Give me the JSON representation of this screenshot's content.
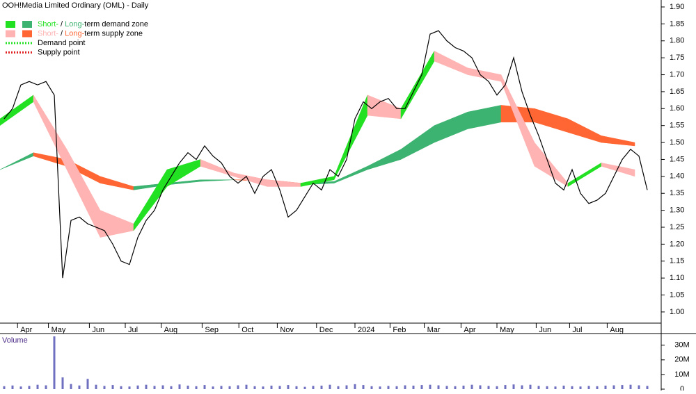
{
  "chart_data": {
    "type": "stock",
    "title": "OOH!Media Limited Ordinary (OML) - Daily",
    "legend": [
      {
        "parts": [
          "Short-",
          " / ",
          "Long-",
          "term demand zone"
        ],
        "colors": [
          "#22e022",
          "#3cb371"
        ],
        "kind": "zone"
      },
      {
        "parts": [
          "Short-",
          " / ",
          "Long-",
          "term supply zone"
        ],
        "colors": [
          "#ffb3b3",
          "#ff6633"
        ],
        "kind": "zone"
      },
      {
        "parts": [
          "Demand point"
        ],
        "colors": [
          "#22e022"
        ],
        "kind": "point"
      },
      {
        "parts": [
          "Supply point"
        ],
        "colors": [
          "#e02020"
        ],
        "kind": "point"
      }
    ],
    "xlim": [
      0,
      79
    ],
    "xticks": [
      {
        "value": 2.1,
        "label": "Apr"
      },
      {
        "value": 5.8,
        "label": "May"
      },
      {
        "value": 10.7,
        "label": "Jun"
      },
      {
        "value": 15,
        "label": "Jul"
      },
      {
        "value": 19.3,
        "label": "Aug"
      },
      {
        "value": 24.2,
        "label": "Sep"
      },
      {
        "value": 28.6,
        "label": "Oct"
      },
      {
        "value": 33.2,
        "label": "Nov"
      },
      {
        "value": 37.9,
        "label": "Dec"
      },
      {
        "value": 42.5,
        "label": "2024"
      },
      {
        "value": 46.7,
        "label": "Feb"
      },
      {
        "value": 50.8,
        "label": "Mar"
      },
      {
        "value": 55.2,
        "label": "Apr"
      },
      {
        "value": 59.5,
        "label": "May"
      },
      {
        "value": 64.2,
        "label": "Jun"
      },
      {
        "value": 68.2,
        "label": "Jul"
      },
      {
        "value": 72.7,
        "label": "Aug"
      }
    ],
    "ylim": [
      0.967,
      1.9205
    ],
    "yticks": [
      {
        "value": 1.0,
        "label": "1.00"
      },
      {
        "value": 1.05,
        "label": "1.05"
      },
      {
        "value": 1.1,
        "label": "1.10"
      },
      {
        "value": 1.15,
        "label": "1.15"
      },
      {
        "value": 1.2,
        "label": "1.20"
      },
      {
        "value": 1.25,
        "label": "1.25"
      },
      {
        "value": 1.3,
        "label": "1.30"
      },
      {
        "value": 1.35,
        "label": "1.35"
      },
      {
        "value": 1.4,
        "label": "1.40"
      },
      {
        "value": 1.45,
        "label": "1.45"
      },
      {
        "value": 1.5,
        "label": "1.50"
      },
      {
        "value": 1.55,
        "label": "1.55"
      },
      {
        "value": 1.6,
        "label": "1.60"
      },
      {
        "value": 1.65,
        "label": "1.65"
      },
      {
        "value": 1.7,
        "label": "1.70"
      },
      {
        "value": 1.75,
        "label": "1.75"
      },
      {
        "value": 1.8,
        "label": "1.80"
      },
      {
        "value": 1.85,
        "label": "1.85"
      },
      {
        "value": 1.9,
        "label": "1.90"
      }
    ],
    "price": {
      "color": "#000000",
      "values": [
        1.57,
        1.6,
        1.67,
        1.68,
        1.67,
        1.68,
        1.64,
        1.1,
        1.27,
        1.28,
        1.26,
        1.25,
        1.24,
        1.2,
        1.15,
        1.14,
        1.22,
        1.27,
        1.3,
        1.36,
        1.4,
        1.44,
        1.47,
        1.45,
        1.49,
        1.46,
        1.44,
        1.4,
        1.38,
        1.4,
        1.35,
        1.4,
        1.42,
        1.36,
        1.28,
        1.3,
        1.34,
        1.38,
        1.36,
        1.42,
        1.4,
        1.45,
        1.57,
        1.62,
        1.6,
        1.62,
        1.63,
        1.6,
        1.6,
        1.65,
        1.7,
        1.82,
        1.83,
        1.8,
        1.78,
        1.77,
        1.75,
        1.7,
        1.68,
        1.64,
        1.67,
        1.75,
        1.65,
        1.58,
        1.52,
        1.45,
        1.38,
        1.36,
        1.42,
        1.35,
        1.32,
        1.33,
        1.35,
        1.4,
        1.45,
        1.48,
        1.46,
        1.36
      ]
    },
    "zone_x": [
      0,
      4,
      8,
      12,
      16,
      20,
      24,
      28,
      32,
      36,
      40,
      44,
      48,
      52,
      56,
      60,
      64,
      68,
      72,
      76
    ],
    "long_zone": {
      "demand_color": "#3cb371",
      "supply_color": "#ff6633",
      "lower": [
        1.42,
        1.46,
        1.43,
        1.38,
        1.36,
        1.375,
        1.385,
        1.39,
        1.385,
        1.375,
        1.38,
        1.42,
        1.45,
        1.5,
        1.54,
        1.56,
        1.56,
        1.53,
        1.5,
        1.49
      ],
      "upper": [
        1.42,
        1.47,
        1.45,
        1.4,
        1.37,
        1.38,
        1.39,
        1.39,
        1.39,
        1.38,
        1.385,
        1.43,
        1.48,
        1.55,
        1.59,
        1.61,
        1.6,
        1.57,
        1.52,
        1.5
      ]
    },
    "short_zone": {
      "demand_color": "#22e022",
      "supply_color": "#ffb3b3",
      "lower": [
        1.55,
        1.62,
        1.42,
        1.22,
        1.24,
        1.37,
        1.43,
        1.4,
        1.37,
        1.37,
        1.39,
        1.58,
        1.57,
        1.74,
        1.7,
        1.68,
        1.43,
        1.37,
        1.43,
        1.4
      ],
      "upper": [
        1.57,
        1.64,
        1.48,
        1.3,
        1.26,
        1.42,
        1.45,
        1.41,
        1.39,
        1.38,
        1.4,
        1.64,
        1.6,
        1.77,
        1.72,
        1.7,
        1.5,
        1.38,
        1.44,
        1.42
      ]
    },
    "volume": {
      "label": "Volume",
      "color": "#7070c0",
      "ylim": [
        0,
        37000000
      ],
      "yticks": [
        0,
        {
          "value": 10000000,
          "label": "10M"
        },
        {
          "value": 20000000,
          "label": "20M"
        },
        {
          "value": 30000000,
          "label": "30M"
        }
      ],
      "values": [
        2000000,
        2500000,
        1800000,
        2200000,
        3000000,
        2600000,
        36000000,
        8000000,
        3500000,
        2500000,
        7000000,
        3000000,
        2200000,
        2800000,
        2000000,
        1800000,
        2500000,
        3000000,
        2200000,
        2600000,
        2000000,
        3200000,
        2400000,
        2000000,
        2800000,
        1800000,
        2200000,
        2000000,
        2600000,
        3000000,
        2000000,
        1800000,
        2400000,
        2200000,
        2800000,
        2000000,
        1600000,
        2200000,
        2400000,
        3000000,
        2000000,
        2600000,
        3400000,
        2800000,
        2000000,
        1800000,
        2200000,
        2000000,
        2600000,
        2400000,
        2800000,
        3000000,
        2600000,
        2200000,
        2000000,
        2400000,
        3000000,
        2600000,
        2200000,
        2000000,
        2800000,
        3200000,
        2600000,
        3000000,
        2200000,
        2000000,
        1800000,
        2400000,
        2000000,
        1800000,
        2200000,
        2000000,
        2400000,
        2600000,
        2800000,
        3000000,
        2600000,
        2200000
      ]
    }
  }
}
